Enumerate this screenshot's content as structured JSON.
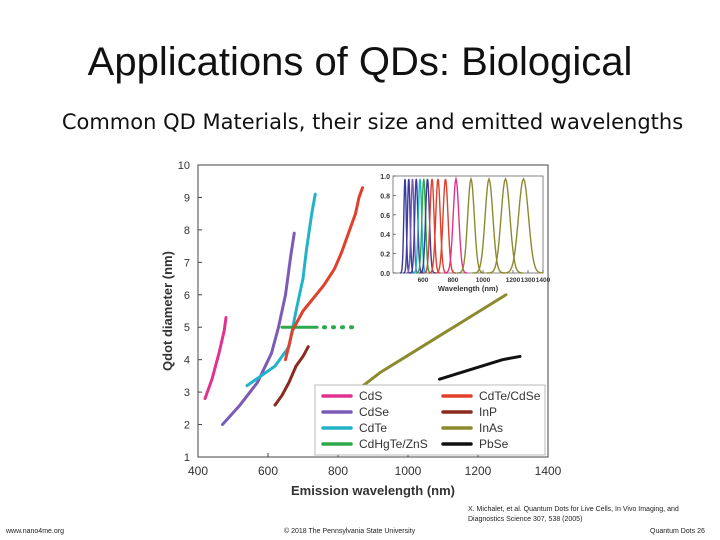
{
  "slide": {
    "title": "Applications of QDs: Biological",
    "subtitle": "Common QD Materials, their size and emitted wavelengths",
    "citation_line1": "X. Michalet, et al. Quantum Dots for Live Cells, In Vivo Imaging, and",
    "citation_line2": "Diagnostics Science 307, 538 (2005)",
    "footer_left": "www.nano4me.org",
    "footer_center": "© 2018 The Pennsylvania State University",
    "footer_right": "Quantum Dots 26"
  },
  "chart_data": [
    {
      "type": "line",
      "xlabel": "Emission wavelength (nm)",
      "ylabel": "Qdot diameter (nm)",
      "xlim": [
        400,
        1400
      ],
      "ylim": [
        1,
        10
      ],
      "xticks": [
        400,
        600,
        800,
        1000,
        1200,
        1400
      ],
      "yticks": [
        1,
        2,
        3,
        4,
        5,
        6,
        7,
        8,
        9,
        10
      ],
      "legend_position": "bottom-right",
      "series": [
        {
          "name": "CdS",
          "color": "#e0338f",
          "x": [
            420,
            440,
            460,
            475,
            480
          ],
          "y": [
            2.8,
            3.4,
            4.2,
            4.9,
            5.3
          ]
        },
        {
          "name": "CdSe",
          "color": "#7b5bb5",
          "x": [
            470,
            520,
            570,
            610,
            630,
            650,
            665,
            675
          ],
          "y": [
            2.0,
            2.6,
            3.3,
            4.2,
            5.0,
            6.0,
            7.2,
            7.9
          ]
        },
        {
          "name": "CdTe",
          "color": "#22b3c8",
          "x": [
            540,
            580,
            620,
            660,
            680,
            700,
            710,
            725,
            735
          ],
          "y": [
            3.2,
            3.5,
            3.8,
            4.4,
            5.5,
            6.5,
            7.4,
            8.5,
            9.1
          ]
        },
        {
          "name": "CdHgTe/ZnS",
          "color": "#2da84a",
          "x": [
            640,
            680,
            720,
            740
          ],
          "y": [
            5.0,
            5.0,
            5.0,
            5.0
          ]
        },
        {
          "name": "CdHgTe/ZnS dotted",
          "color": "#2da84a",
          "x": [
            760,
            790,
            820,
            850
          ],
          "y": [
            5.0,
            5.0,
            5.0,
            5.0
          ]
        },
        {
          "name": "CdTe/CdSe",
          "color": "#e0402c",
          "x": [
            650,
            670,
            700,
            730,
            760,
            790,
            810,
            830,
            850,
            860,
            870
          ],
          "y": [
            4.0,
            4.9,
            5.5,
            5.9,
            6.3,
            6.8,
            7.3,
            7.9,
            8.5,
            9.0,
            9.3
          ]
        },
        {
          "name": "InP",
          "color": "#8b2a1f",
          "x": [
            620,
            640,
            660,
            680,
            700,
            715
          ],
          "y": [
            2.6,
            2.9,
            3.3,
            3.8,
            4.1,
            4.4
          ]
        },
        {
          "name": "InAs",
          "color": "#8c8a2e",
          "x": [
            860,
            920,
            980,
            1040,
            1100,
            1160,
            1220,
            1280
          ],
          "y": [
            3.1,
            3.6,
            4.0,
            4.4,
            4.8,
            5.2,
            5.6,
            6.0
          ]
        },
        {
          "name": "PbSe",
          "color": "#111111",
          "x": [
            1090,
            1150,
            1210,
            1270,
            1320
          ],
          "y": [
            3.4,
            3.6,
            3.8,
            4.0,
            4.1
          ]
        }
      ],
      "legend": [
        {
          "label": "CdS",
          "color": "#e0338f"
        },
        {
          "label": "CdSe",
          "color": "#7b5bb5"
        },
        {
          "label": "CdTe",
          "color": "#22b3c8"
        },
        {
          "label": "CdHgTe/ZnS",
          "color": "#2da84a"
        },
        {
          "label": "CdTe/CdSe",
          "color": "#e0402c"
        },
        {
          "label": "InP",
          "color": "#8b2a1f"
        },
        {
          "label": "InAs",
          "color": "#8c8a2e"
        },
        {
          "label": "PbSe",
          "color": "#111111"
        }
      ]
    },
    {
      "type": "line",
      "xlabel": "Wavelength (nm)",
      "ylabel": "",
      "xlim": [
        400,
        1400
      ],
      "ylim": [
        0,
        1.0
      ],
      "xticks": [
        600,
        800,
        1000,
        1200,
        1300,
        1400
      ],
      "xtick_labels": [
        "600",
        "800",
        "1000",
        "1200",
        "1300",
        "1400"
      ],
      "yticks": [
        0.0,
        0.2,
        0.4,
        0.6,
        0.8,
        1.0
      ],
      "ytick_labels": [
        "0.0",
        "0.2",
        "0.4",
        "0.6",
        "0.8",
        "1.0"
      ],
      "peaks": [
        {
          "center": 480,
          "color": "#3b3b9e"
        },
        {
          "center": 505,
          "color": "#3b3b9e"
        },
        {
          "center": 530,
          "color": "#7b5bb5"
        },
        {
          "center": 555,
          "color": "#3b3b9e"
        },
        {
          "center": 580,
          "color": "#22b3c8"
        },
        {
          "center": 605,
          "color": "#2da84a"
        },
        {
          "center": 630,
          "color": "#3b3b9e"
        },
        {
          "center": 660,
          "color": "#e0402c"
        },
        {
          "center": 700,
          "color": "#e0402c"
        },
        {
          "center": 750,
          "color": "#e0402c"
        },
        {
          "center": 820,
          "color": "#e0338f"
        },
        {
          "center": 920,
          "color": "#8c8a2e"
        },
        {
          "center": 1040,
          "color": "#8c8a2e"
        },
        {
          "center": 1150,
          "color": "#8c8a2e"
        },
        {
          "center": 1270,
          "color": "#8c8a2e"
        }
      ]
    }
  ]
}
